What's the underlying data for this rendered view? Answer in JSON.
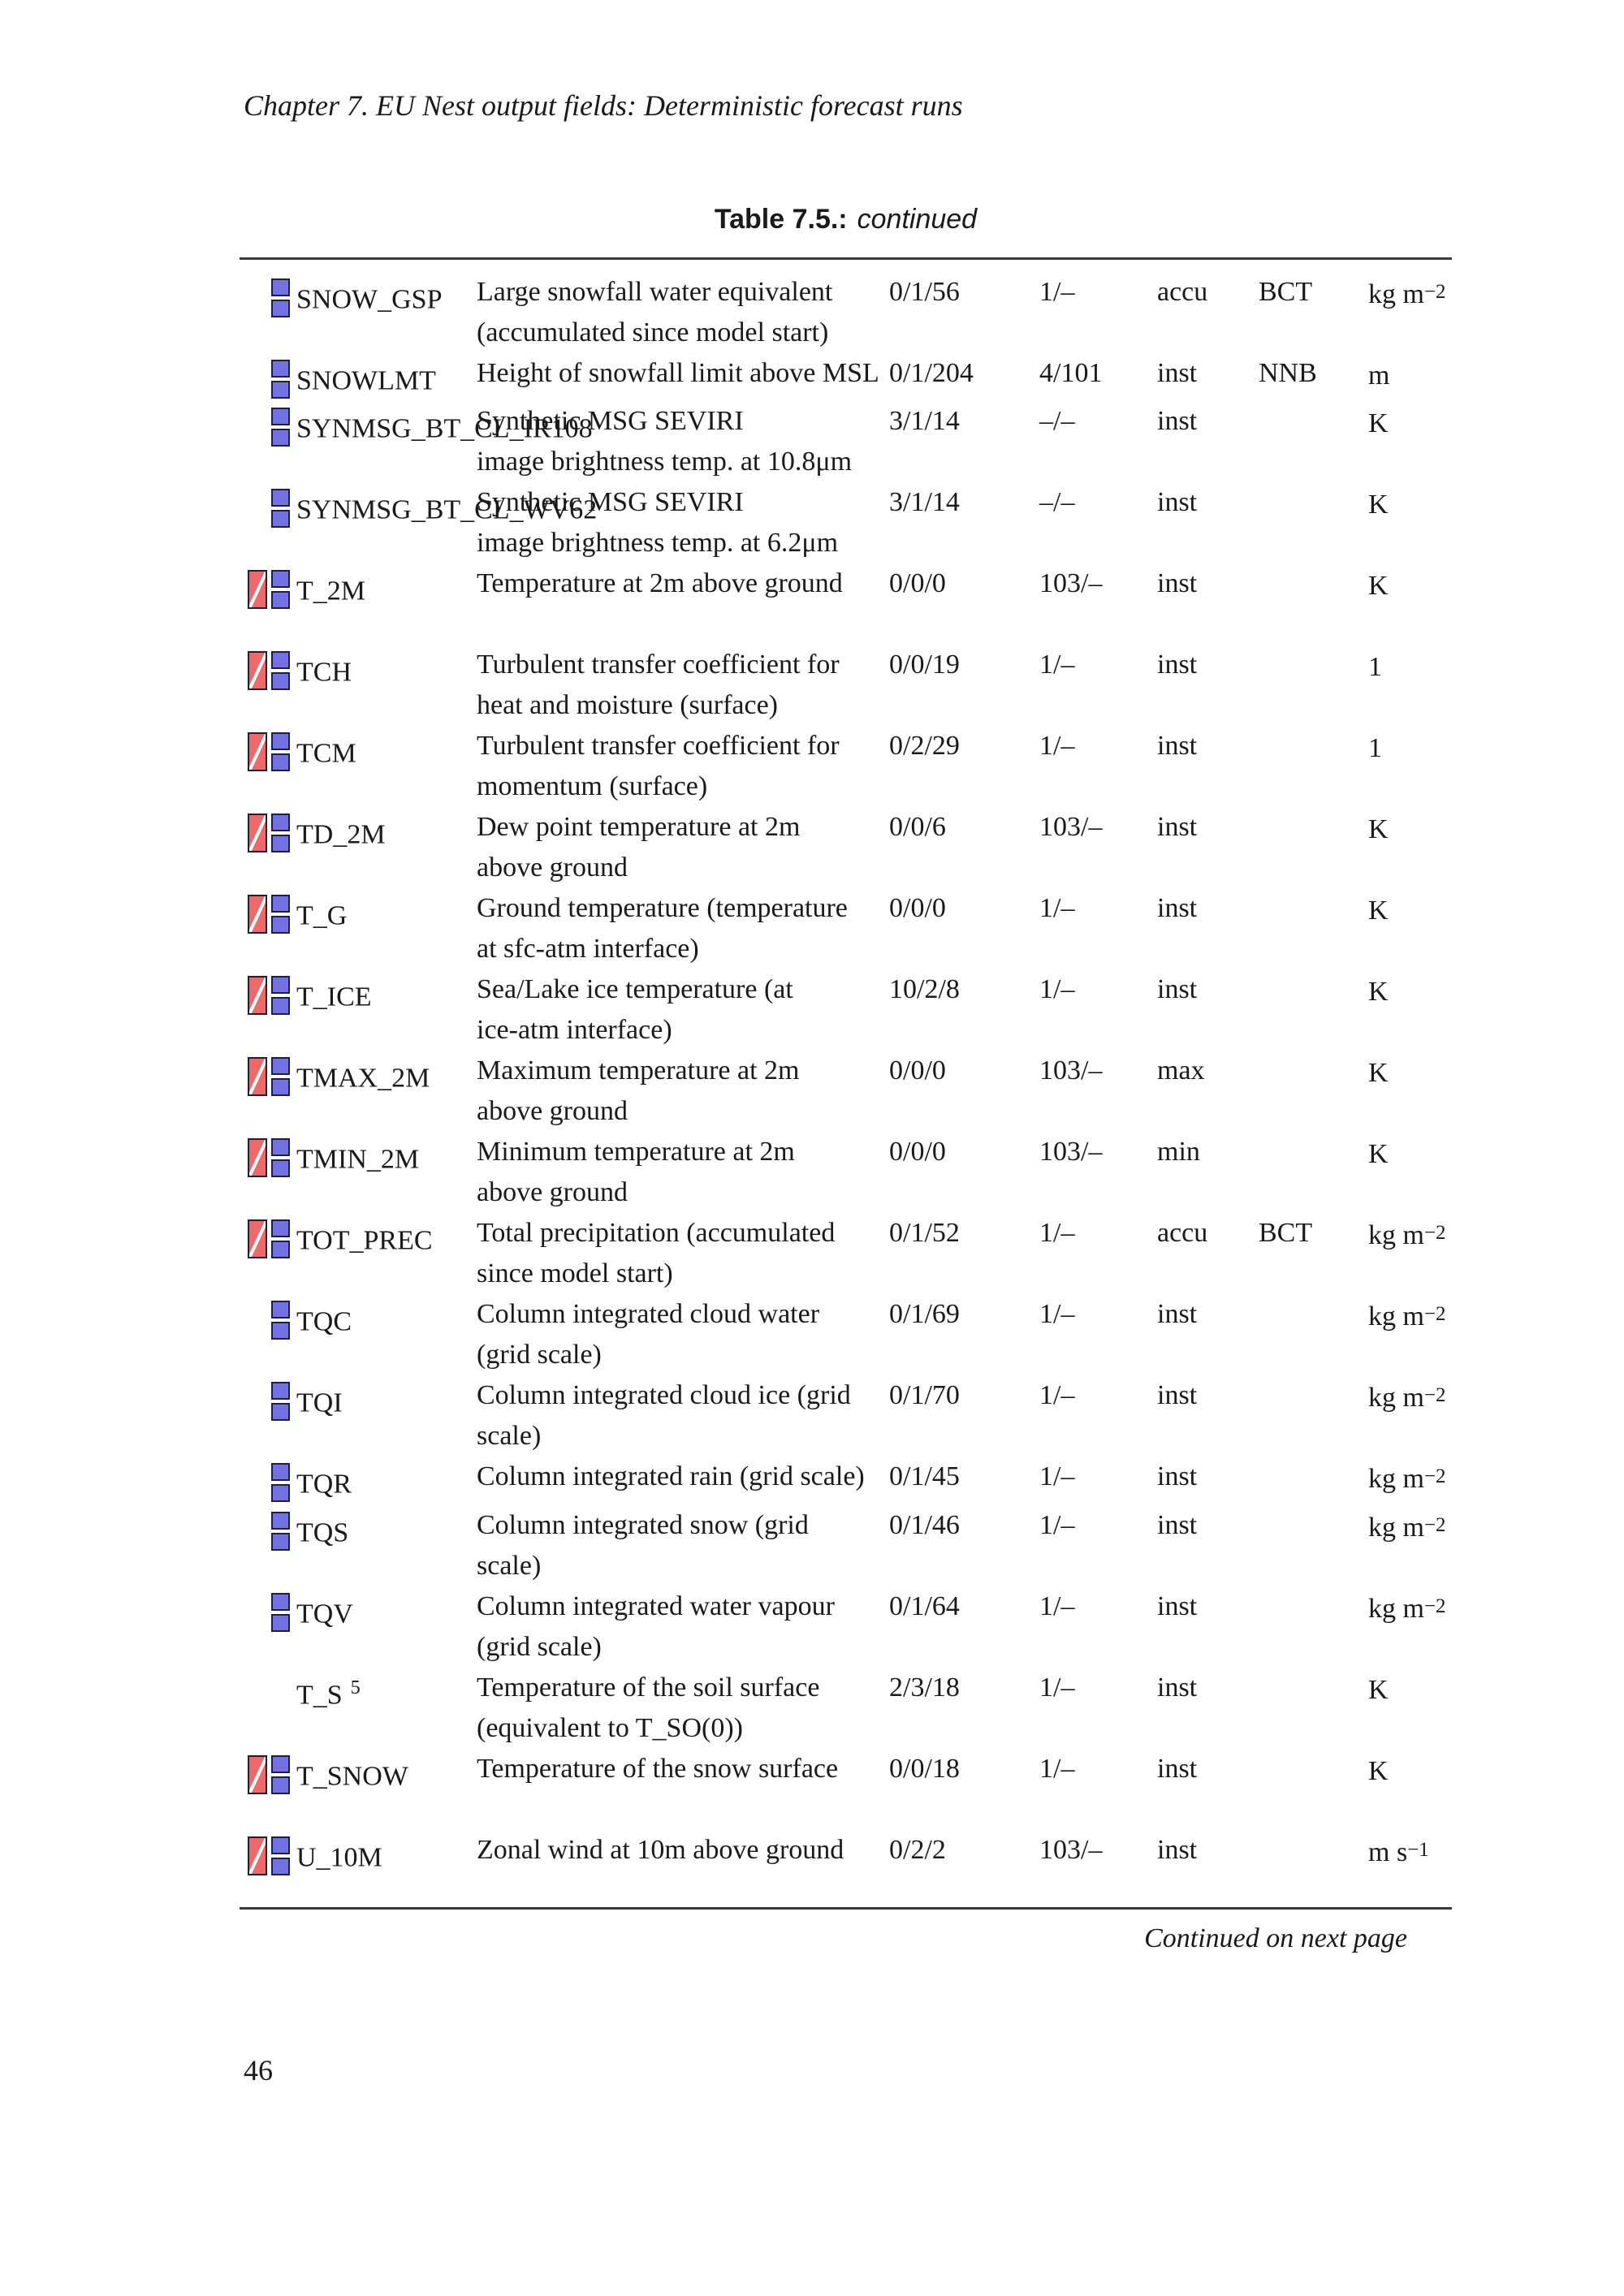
{
  "page": {
    "chapter_header": "Chapter 7. EU Nest output fields: Deterministic forecast runs",
    "footer_note": "Continued on next page",
    "page_number": "46"
  },
  "table": {
    "caption_label": "Table 7.5.:",
    "caption_suffix": "continued",
    "icon_colors": {
      "red": "#ee6a6a",
      "blue": "#7272e2"
    },
    "rows": [
      {
        "name": "SNOW_GSP",
        "sup": "",
        "icon": "blue",
        "desc": "Large snowfall water equivalent\n(accumulated since model start)",
        "code": "0/1/56",
        "level": "1/–",
        "timeop": "accu",
        "flag": "BCT",
        "unit": "kg m",
        "unit_sup": "−2",
        "h": 100
      },
      {
        "name": "SNOWLMT",
        "sup": "",
        "icon": "blue",
        "desc": "Height of snowfall limit above MSL",
        "code": "0/1/204",
        "level": "4/101",
        "timeop": "inst",
        "flag": "NNB",
        "unit": "m",
        "unit_sup": "",
        "h": 58
      },
      {
        "name": "SYNMSG_BT_CL_IR108",
        "sup": "",
        "icon": "blue",
        "desc": "Synthetic MSG SEVIRI\nimage brightness temp. at 10.8μm",
        "code": "3/1/14",
        "level": "–/–",
        "timeop": "inst",
        "flag": "",
        "unit": "K",
        "unit_sup": "",
        "h": 100
      },
      {
        "name": "SYNMSG_BT_CL_WV62",
        "sup": "",
        "icon": "blue",
        "desc": "Synthetic MSG SEVIRI\nimage brightness temp. at 6.2μm",
        "code": "3/1/14",
        "level": "–/–",
        "timeop": "inst",
        "flag": "",
        "unit": "K",
        "unit_sup": "",
        "h": 100
      },
      {
        "name": "T_2M",
        "sup": "",
        "icon": "both",
        "desc": "Temperature at 2m above ground",
        "code": "0/0/0",
        "level": "103/–",
        "timeop": "inst",
        "flag": "",
        "unit": "K",
        "unit_sup": "",
        "h": 100
      },
      {
        "name": "TCH",
        "sup": "",
        "icon": "both",
        "desc": "Turbulent transfer coefficient for\nheat and moisture (surface)",
        "code": "0/0/19",
        "level": "1/–",
        "timeop": "inst",
        "flag": "",
        "unit": "1",
        "unit_sup": "",
        "h": 100
      },
      {
        "name": "TCM",
        "sup": "",
        "icon": "both",
        "desc": "Turbulent transfer coefficient for\nmomentum (surface)",
        "code": "0/2/29",
        "level": "1/–",
        "timeop": "inst",
        "flag": "",
        "unit": "1",
        "unit_sup": "",
        "h": 100
      },
      {
        "name": "TD_2M",
        "sup": "",
        "icon": "both",
        "desc": "Dew point temperature at 2m\nabove ground",
        "code": "0/0/6",
        "level": "103/–",
        "timeop": "inst",
        "flag": "",
        "unit": "K",
        "unit_sup": "",
        "h": 100
      },
      {
        "name": "T_G",
        "sup": "",
        "icon": "both",
        "desc": "Ground temperature (temperature\nat sfc-atm interface)",
        "code": "0/0/0",
        "level": "1/–",
        "timeop": "inst",
        "flag": "",
        "unit": "K",
        "unit_sup": "",
        "h": 100
      },
      {
        "name": "T_ICE",
        "sup": "",
        "icon": "both",
        "desc": "Sea/Lake ice temperature (at\nice-atm interface)",
        "code": "10/2/8",
        "level": "1/–",
        "timeop": "inst",
        "flag": "",
        "unit": "K",
        "unit_sup": "",
        "h": 100
      },
      {
        "name": "TMAX_2M",
        "sup": "",
        "icon": "both",
        "desc": "Maximum temperature at 2m\nabove ground",
        "code": "0/0/0",
        "level": "103/–",
        "timeop": "max",
        "flag": "",
        "unit": "K",
        "unit_sup": "",
        "h": 100
      },
      {
        "name": "TMIN_2M",
        "sup": "",
        "icon": "both",
        "desc": "Minimum temperature at 2m\nabove ground",
        "code": "0/0/0",
        "level": "103/–",
        "timeop": "min",
        "flag": "",
        "unit": "K",
        "unit_sup": "",
        "h": 100
      },
      {
        "name": "TOT_PREC",
        "sup": "",
        "icon": "both",
        "desc": "Total precipitation (accumulated\nsince model start)",
        "code": "0/1/52",
        "level": "1/–",
        "timeop": "accu",
        "flag": "BCT",
        "unit": "kg m",
        "unit_sup": "−2",
        "h": 100
      },
      {
        "name": "TQC",
        "sup": "",
        "icon": "blue",
        "desc": "Column integrated cloud water\n(grid scale)",
        "code": "0/1/69",
        "level": "1/–",
        "timeop": "inst",
        "flag": "",
        "unit": "kg m",
        "unit_sup": "−2",
        "h": 100
      },
      {
        "name": "TQI",
        "sup": "",
        "icon": "blue",
        "desc": "Column integrated cloud ice (grid\nscale)",
        "code": "0/1/70",
        "level": "1/–",
        "timeop": "inst",
        "flag": "",
        "unit": "kg m",
        "unit_sup": "−2",
        "h": 100
      },
      {
        "name": "TQR",
        "sup": "",
        "icon": "blue",
        "desc": "Column integrated rain (grid scale)",
        "code": "0/1/45",
        "level": "1/–",
        "timeop": "inst",
        "flag": "",
        "unit": "kg m",
        "unit_sup": "−2",
        "h": 60
      },
      {
        "name": "TQS",
        "sup": "",
        "icon": "blue",
        "desc": "Column integrated snow (grid\nscale)",
        "code": "0/1/46",
        "level": "1/–",
        "timeop": "inst",
        "flag": "",
        "unit": "kg m",
        "unit_sup": "−2",
        "h": 100
      },
      {
        "name": "TQV",
        "sup": "",
        "icon": "blue",
        "desc": "Column integrated water vapour\n(grid scale)",
        "code": "0/1/64",
        "level": "1/–",
        "timeop": "inst",
        "flag": "",
        "unit": "kg m",
        "unit_sup": "−2",
        "h": 100
      },
      {
        "name": "T_S",
        "sup": "5",
        "icon": "none",
        "desc": "Temperature of the soil surface\n(equivalent to T_SO(0))",
        "code": "2/3/18",
        "level": "1/–",
        "timeop": "inst",
        "flag": "",
        "unit": "K",
        "unit_sup": "",
        "h": 100
      },
      {
        "name": "T_SNOW",
        "sup": "",
        "icon": "both",
        "desc": "Temperature of the snow surface",
        "code": "0/0/18",
        "level": "1/–",
        "timeop": "inst",
        "flag": "",
        "unit": "K",
        "unit_sup": "",
        "h": 100
      },
      {
        "name": "U_10M",
        "sup": "",
        "icon": "both",
        "desc": "Zonal wind at 10m above ground",
        "code": "0/2/2",
        "level": "103/–",
        "timeop": "inst",
        "flag": "",
        "unit": "m s",
        "unit_sup": "−1",
        "h": 95
      }
    ]
  }
}
